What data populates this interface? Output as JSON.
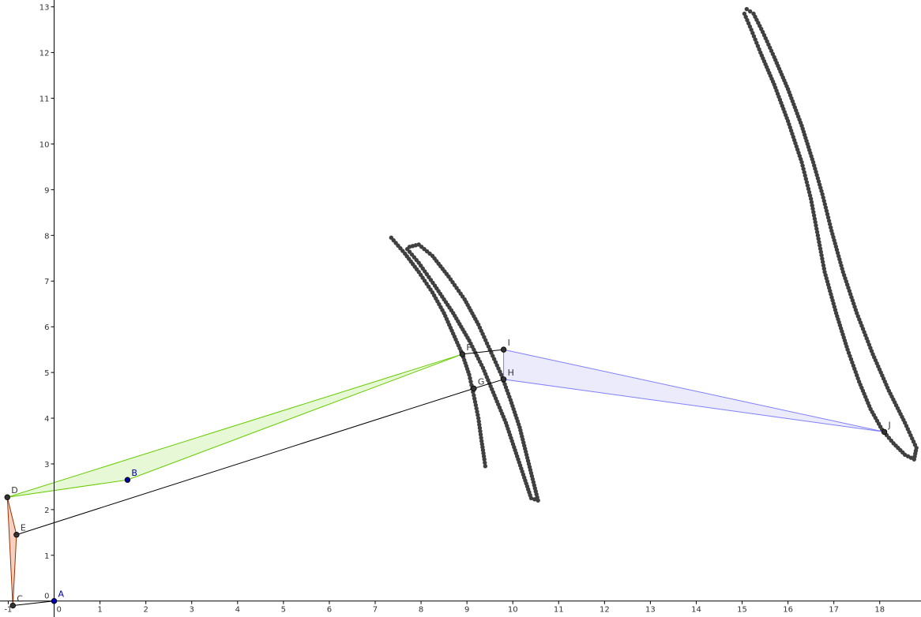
{
  "view": {
    "xmin": -1.18,
    "xmax": 18.9,
    "ymin": -0.35,
    "ymax": 13.15,
    "grid": false,
    "axis_color": "#000000"
  },
  "axes": {
    "x_ticks": [
      "-1",
      "0",
      "1",
      "2",
      "3",
      "4",
      "5",
      "6",
      "7",
      "8",
      "9",
      "10",
      "11",
      "12",
      "13",
      "14",
      "15",
      "16",
      "17",
      "18"
    ],
    "y_ticks": [
      "0",
      "1",
      "2",
      "3",
      "4",
      "5",
      "6",
      "7",
      "8",
      "9",
      "10",
      "11",
      "12",
      "13"
    ]
  },
  "points": [
    {
      "label": "A",
      "x": 0.0,
      "y": 0.0,
      "color": "#0000aa",
      "free": true
    },
    {
      "label": "B",
      "x": 1.6,
      "y": 2.65,
      "color": "#0000aa",
      "free": true
    },
    {
      "label": "C",
      "x": -0.9,
      "y": -0.1,
      "color": "#333333",
      "free": false
    },
    {
      "label": "D",
      "x": -1.02,
      "y": 2.27,
      "color": "#333333",
      "free": false
    },
    {
      "label": "E",
      "x": -0.82,
      "y": 1.45,
      "color": "#333333",
      "free": false
    },
    {
      "label": "F",
      "x": 8.9,
      "y": 5.4,
      "color": "#333333",
      "free": false
    },
    {
      "label": "G",
      "x": 9.15,
      "y": 4.65,
      "color": "#333333",
      "free": false
    },
    {
      "label": "H",
      "x": 9.8,
      "y": 4.85,
      "color": "#333333",
      "free": false
    },
    {
      "label": "I",
      "x": 9.8,
      "y": 5.5,
      "color": "#333333",
      "free": false
    },
    {
      "label": "J",
      "x": 18.1,
      "y": 3.7,
      "color": "#333333",
      "free": false
    }
  ],
  "segments": [
    {
      "from": "C",
      "to": "A",
      "color": "#000000"
    },
    {
      "from": "E",
      "to": "G",
      "color": "#000000"
    },
    {
      "from": "G",
      "to": "H",
      "color": "#000000"
    },
    {
      "from": "F",
      "to": "I",
      "color": "#000000"
    }
  ],
  "polygons": [
    {
      "vertices": [
        "C",
        "D",
        "E"
      ],
      "stroke": "#993300",
      "fill": "#f4c8b6"
    },
    {
      "vertices": [
        "D",
        "F",
        "B"
      ],
      "stroke": "#66cc00",
      "fill": "#e3f7cf"
    },
    {
      "vertices": [
        "I",
        "H",
        "J"
      ],
      "stroke": "#7f7fff",
      "fill": "#e8e8fb"
    }
  ],
  "loci": [
    {
      "name": "locus-arc-left",
      "color": "#404040",
      "path": [
        [
          7.35,
          7.95
        ],
        [
          7.65,
          7.6
        ],
        [
          7.95,
          7.2
        ],
        [
          8.25,
          6.75
        ],
        [
          8.5,
          6.3
        ],
        [
          8.7,
          5.85
        ],
        [
          8.9,
          5.4
        ],
        [
          9.05,
          4.95
        ],
        [
          9.15,
          4.5
        ],
        [
          9.25,
          4.0
        ],
        [
          9.32,
          3.5
        ],
        [
          9.38,
          3.1
        ],
        [
          9.4,
          2.95
        ]
      ]
    },
    {
      "name": "locus-loop-middle",
      "color": "#404040",
      "path": [
        [
          7.75,
          7.75
        ],
        [
          7.95,
          7.8
        ],
        [
          8.25,
          7.55
        ],
        [
          8.6,
          7.1
        ],
        [
          8.95,
          6.6
        ],
        [
          9.25,
          6.05
        ],
        [
          9.5,
          5.5
        ],
        [
          9.75,
          4.95
        ],
        [
          9.95,
          4.4
        ],
        [
          10.15,
          3.8
        ],
        [
          10.3,
          3.2
        ],
        [
          10.45,
          2.6
        ],
        [
          10.55,
          2.2
        ],
        [
          10.4,
          2.25
        ],
        [
          10.25,
          2.7
        ],
        [
          10.05,
          3.3
        ],
        [
          9.85,
          3.9
        ],
        [
          9.6,
          4.5
        ],
        [
          9.35,
          5.1
        ],
        [
          9.05,
          5.7
        ],
        [
          8.7,
          6.3
        ],
        [
          8.3,
          6.9
        ],
        [
          7.95,
          7.4
        ],
        [
          7.7,
          7.7
        ]
      ]
    },
    {
      "name": "locus-figure-eight",
      "color": "#404040",
      "path": [
        [
          15.1,
          12.95
        ],
        [
          15.25,
          12.85
        ],
        [
          15.45,
          12.45
        ],
        [
          15.7,
          11.9
        ],
        [
          16.0,
          11.2
        ],
        [
          16.3,
          10.4
        ],
        [
          16.55,
          9.6
        ],
        [
          16.75,
          8.9
        ],
        [
          16.95,
          8.1
        ],
        [
          17.2,
          7.2
        ],
        [
          17.5,
          6.3
        ],
        [
          17.85,
          5.4
        ],
        [
          18.2,
          4.6
        ],
        [
          18.55,
          3.9
        ],
        [
          18.8,
          3.35
        ],
        [
          18.75,
          3.1
        ],
        [
          18.55,
          3.2
        ],
        [
          18.3,
          3.45
        ],
        [
          18.05,
          3.75
        ],
        [
          17.8,
          4.2
        ],
        [
          17.55,
          4.8
        ],
        [
          17.3,
          5.5
        ],
        [
          17.05,
          6.3
        ],
        [
          16.8,
          7.2
        ],
        [
          16.65,
          8.0
        ],
        [
          16.5,
          8.8
        ],
        [
          16.3,
          9.6
        ],
        [
          16.0,
          10.5
        ],
        [
          15.7,
          11.3
        ],
        [
          15.4,
          12.0
        ],
        [
          15.2,
          12.5
        ],
        [
          15.05,
          12.85
        ]
      ]
    }
  ]
}
